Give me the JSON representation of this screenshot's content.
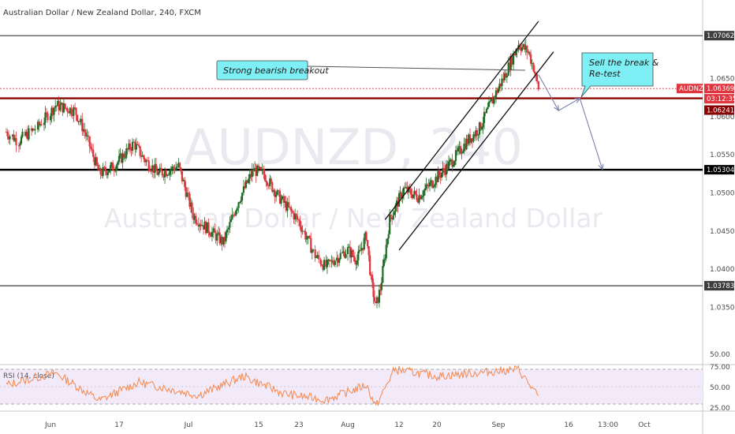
{
  "header": {
    "title": "Australian Dollar / New Zealand Dollar, 240, FXCM"
  },
  "watermark": {
    "symbol": "AUDNZD, 240",
    "name": "Australian Dollar / New Zealand Dollar"
  },
  "annotations": {
    "breakout_label": "Strong bearish breakout",
    "trade_label_line1": "Sell the break &",
    "trade_label_line2": "Re-test"
  },
  "rsi": {
    "label": "RSI (14, close)",
    "ticks": [
      "75.00",
      "50.00",
      "25.00"
    ],
    "band_top": 70,
    "band_bottom": 30
  },
  "price_axis": {
    "ticks": [
      "1.06500",
      "1.06000",
      "1.05500",
      "1.05000",
      "1.04500",
      "1.04000",
      "1.03500"
    ],
    "pane_bottom_label": "50.00",
    "tags": [
      {
        "label": "1.07062",
        "color": "#3d3d3d"
      },
      {
        "label": "AUDNZD",
        "color": "#e0353f"
      },
      {
        "label": "1.06369",
        "color": "#e0353f"
      },
      {
        "label": "03:12:35",
        "color": "#e0353f"
      },
      {
        "label": "1.06241",
        "color": "#8b0000"
      },
      {
        "label": "1.05304",
        "color": "#000000"
      },
      {
        "label": "1.03783",
        "color": "#3d3d3d"
      }
    ]
  },
  "time_axis": {
    "labels": [
      "Jun",
      "17",
      "Jul",
      "15",
      "23",
      "Aug",
      "12",
      "20",
      "Sep",
      "16",
      "13:00",
      "Oct"
    ]
  },
  "chart_data": {
    "type": "candlestick",
    "symbol": "AUDNZD",
    "timeframe": "240",
    "source": "FXCM",
    "ylim": [
      1.0305,
      1.0725
    ],
    "levels": [
      {
        "price": 1.07062,
        "color": "#3d3d3d"
      },
      {
        "price": 1.06241,
        "color": "#8b0000"
      },
      {
        "price": 1.05304,
        "color": "#000000"
      },
      {
        "price": 1.03783,
        "color": "#3d3d3d"
      }
    ],
    "current_price": 1.06369,
    "price_path": [
      {
        "date": "2019-05-27",
        "price": 1.058
      },
      {
        "date": "2019-05-29",
        "price": 1.0568
      },
      {
        "date": "2019-06-01",
        "price": 1.0586
      },
      {
        "date": "2019-06-04",
        "price": 1.0615
      },
      {
        "date": "2019-06-08",
        "price": 1.0608
      },
      {
        "date": "2019-06-10",
        "price": 1.058
      },
      {
        "date": "2019-06-13",
        "price": 1.0525
      },
      {
        "date": "2019-06-16",
        "price": 1.0535
      },
      {
        "date": "2019-06-20",
        "price": 1.0565
      },
      {
        "date": "2019-06-22",
        "price": 1.0545
      },
      {
        "date": "2019-06-25",
        "price": 1.0525
      },
      {
        "date": "2019-06-29",
        "price": 1.0535
      },
      {
        "date": "2019-07-02",
        "price": 1.047
      },
      {
        "date": "2019-07-05",
        "price": 1.0452
      },
      {
        "date": "2019-07-08",
        "price": 1.0435
      },
      {
        "date": "2019-07-11",
        "price": 1.049
      },
      {
        "date": "2019-07-14",
        "price": 1.053
      },
      {
        "date": "2019-07-16",
        "price": 1.0525
      },
      {
        "date": "2019-07-19",
        "price": 1.0495
      },
      {
        "date": "2019-07-23",
        "price": 1.0463
      },
      {
        "date": "2019-07-26",
        "price": 1.0418
      },
      {
        "date": "2019-07-28",
        "price": 1.0403
      },
      {
        "date": "2019-07-30",
        "price": 1.0415
      },
      {
        "date": "2019-08-01",
        "price": 1.0425
      },
      {
        "date": "2019-08-03",
        "price": 1.0412
      },
      {
        "date": "2019-08-05",
        "price": 1.0445
      },
      {
        "date": "2019-08-06",
        "price": 1.0385
      },
      {
        "date": "2019-08-07",
        "price": 1.035
      },
      {
        "date": "2019-08-08",
        "price": 1.0375
      },
      {
        "date": "2019-08-10",
        "price": 1.0465
      },
      {
        "date": "2019-08-13",
        "price": 1.0505
      },
      {
        "date": "2019-08-16",
        "price": 1.0495
      },
      {
        "date": "2019-08-20",
        "price": 1.052
      },
      {
        "date": "2019-08-23",
        "price": 1.054
      },
      {
        "date": "2019-08-26",
        "price": 1.0565
      },
      {
        "date": "2019-08-29",
        "price": 1.0585
      },
      {
        "date": "2019-09-01",
        "price": 1.0625
      },
      {
        "date": "2019-09-03",
        "price": 1.065
      },
      {
        "date": "2019-09-06",
        "price": 1.0695
      },
      {
        "date": "2019-09-08",
        "price": 1.0685
      },
      {
        "date": "2019-09-09",
        "price": 1.0665
      },
      {
        "date": "2019-09-10",
        "price": 1.0637
      }
    ],
    "channel": {
      "upper": [
        {
          "date": "2019-08-09",
          "price": 1.0465
        },
        {
          "date": "2019-09-10",
          "price": 1.0725
        }
      ],
      "lower": [
        {
          "date": "2019-08-12",
          "price": 1.0425
        },
        {
          "date": "2019-09-13",
          "price": 1.0685
        }
      ]
    },
    "projection": [
      {
        "date": "2019-09-10",
        "price": 1.0655
      },
      {
        "date": "2019-09-14",
        "price": 1.0608
      },
      {
        "date": "2019-09-18",
        "price": 1.0624
      },
      {
        "date": "2019-09-22",
        "price": 1.0531
      }
    ],
    "rsi_path": [
      {
        "date": "2019-05-27",
        "value": 52
      },
      {
        "date": "2019-06-04",
        "value": 66
      },
      {
        "date": "2019-06-13",
        "value": 34
      },
      {
        "date": "2019-06-21",
        "value": 55
      },
      {
        "date": "2019-07-03",
        "value": 40
      },
      {
        "date": "2019-07-12",
        "value": 62
      },
      {
        "date": "2019-07-20",
        "value": 42
      },
      {
        "date": "2019-07-28",
        "value": 35
      },
      {
        "date": "2019-08-05",
        "value": 52
      },
      {
        "date": "2019-08-07",
        "value": 27
      },
      {
        "date": "2019-08-11",
        "value": 70
      },
      {
        "date": "2019-08-20",
        "value": 62
      },
      {
        "date": "2019-08-29",
        "value": 66
      },
      {
        "date": "2019-09-06",
        "value": 70
      },
      {
        "date": "2019-09-10",
        "value": 38
      }
    ]
  },
  "colors": {
    "bull": "#1e6b24",
    "bear": "#e0353f",
    "rsi_line": "#f5874b",
    "rsi_band": "#f3eaf9",
    "callout_fill": "#7ef0f5",
    "arrow": "#7b82ad"
  }
}
